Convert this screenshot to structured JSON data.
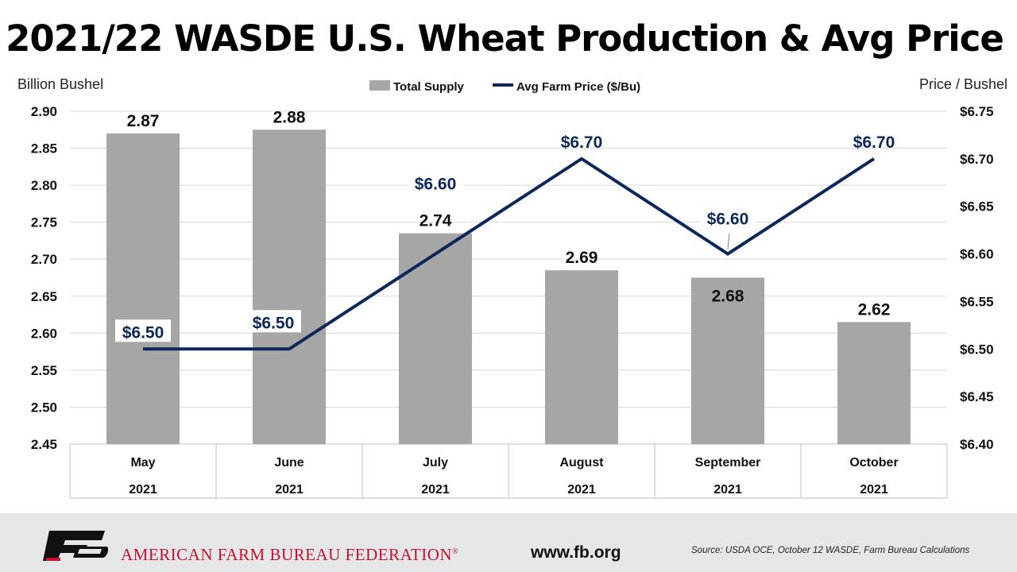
{
  "title": "2021/22 WASDE U.S. Wheat Production & Avg Price",
  "left_axis_title": "Billion Bushel",
  "right_axis_title": "Price / Bushel",
  "chart_data": {
    "type": "bar+line",
    "categories": [
      "May",
      "June",
      "July",
      "August",
      "September",
      "October"
    ],
    "category_years": [
      "2021",
      "2021",
      "2021",
      "2021",
      "2021",
      "2021"
    ],
    "series": [
      {
        "name": "Total Supply",
        "type": "bar",
        "axis": "left",
        "color": "#a6a6a6",
        "values": [
          2.87,
          2.875,
          2.735,
          2.685,
          2.675,
          2.615
        ],
        "labels": [
          "2.87",
          "2.88",
          "2.74",
          "2.69",
          "2.68",
          "2.62"
        ]
      },
      {
        "name": "Avg Farm Price ($/Bu)",
        "type": "line",
        "axis": "right",
        "color": "#0c2759",
        "values": [
          6.5,
          6.5,
          6.6,
          6.7,
          6.6,
          6.7
        ],
        "labels": [
          "$6.50",
          "$6.50",
          "$6.60",
          "$6.70",
          "$6.60",
          "$6.70"
        ]
      }
    ],
    "y_left": {
      "min": 2.45,
      "max": 2.9,
      "step": 0.05,
      "ticks": [
        "2.45",
        "2.50",
        "2.55",
        "2.60",
        "2.65",
        "2.70",
        "2.75",
        "2.80",
        "2.85",
        "2.90"
      ]
    },
    "y_right": {
      "min": 6.4,
      "max": 6.75,
      "step": 0.05,
      "ticks": [
        "$6.40",
        "$6.45",
        "$6.50",
        "$6.55",
        "$6.60",
        "$6.65",
        "$6.70",
        "$6.75"
      ]
    },
    "grid": true,
    "legend_position": "top-center"
  },
  "footer": {
    "organization": "AMERICAN FARM BUREAU FEDERATION",
    "registered_mark": "®",
    "website": "www.fb.org",
    "source": "Source: USDA OCE, October 12 WASDE, Farm Bureau Calculations"
  }
}
